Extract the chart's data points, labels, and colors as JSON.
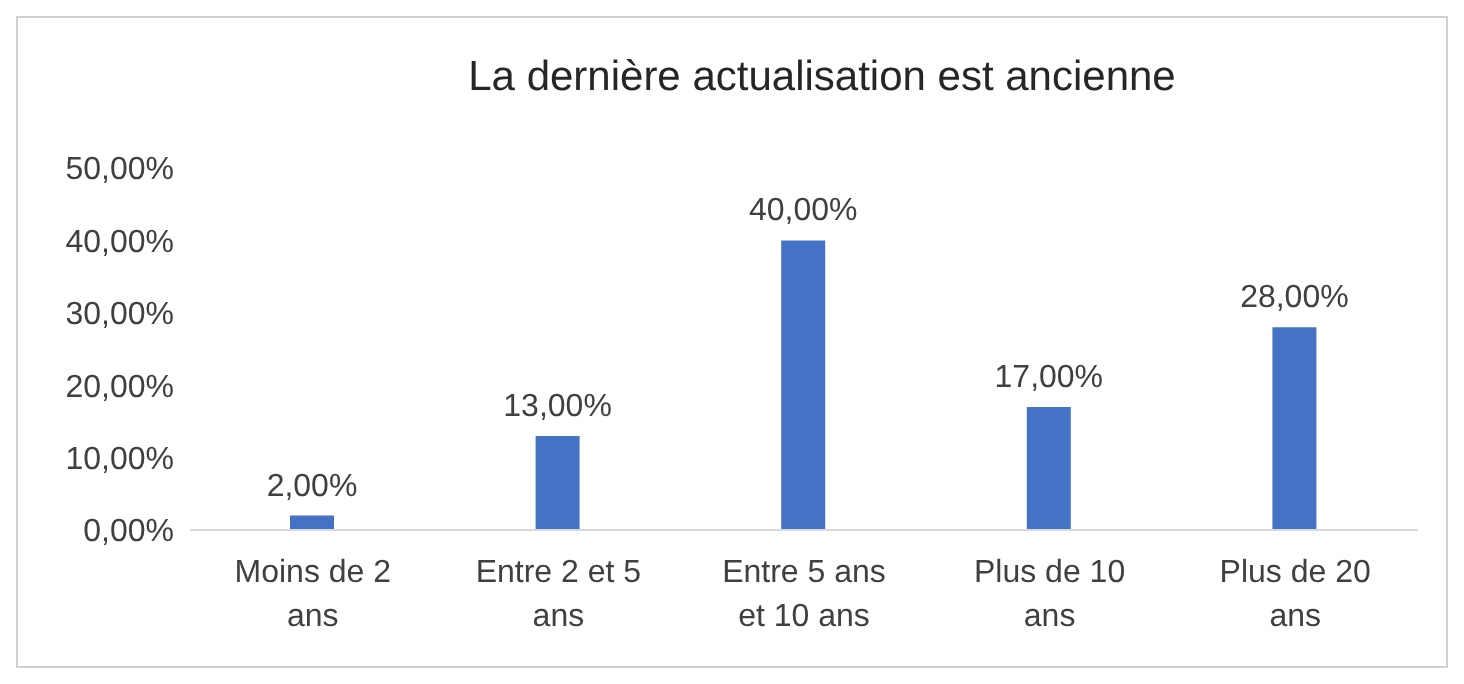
{
  "chart_data": {
    "type": "bar",
    "title": "La dernière actualisation est ancienne",
    "categories": [
      "Moins de 2 ans",
      "Entre 2 et 5 ans",
      "Entre 5 ans et 10 ans",
      "Plus de 10 ans",
      "Plus de 20 ans"
    ],
    "values": [
      2,
      13,
      40,
      17,
      28
    ],
    "color": "#4472c4",
    "value_labels": [
      "2,00%",
      "13,00%",
      "40,00%",
      "17,00%",
      "28,00%"
    ],
    "ylim": [
      0,
      50
    ],
    "yticks": [
      {
        "value": 0,
        "label": "0,00%"
      },
      {
        "value": 10,
        "label": "10,00%"
      },
      {
        "value": 20,
        "label": "20,00%"
      },
      {
        "value": 30,
        "label": "30,00%"
      },
      {
        "value": 40,
        "label": "40,00%"
      },
      {
        "value": 50,
        "label": "50,00%"
      }
    ],
    "grid": false,
    "legend": false
  }
}
